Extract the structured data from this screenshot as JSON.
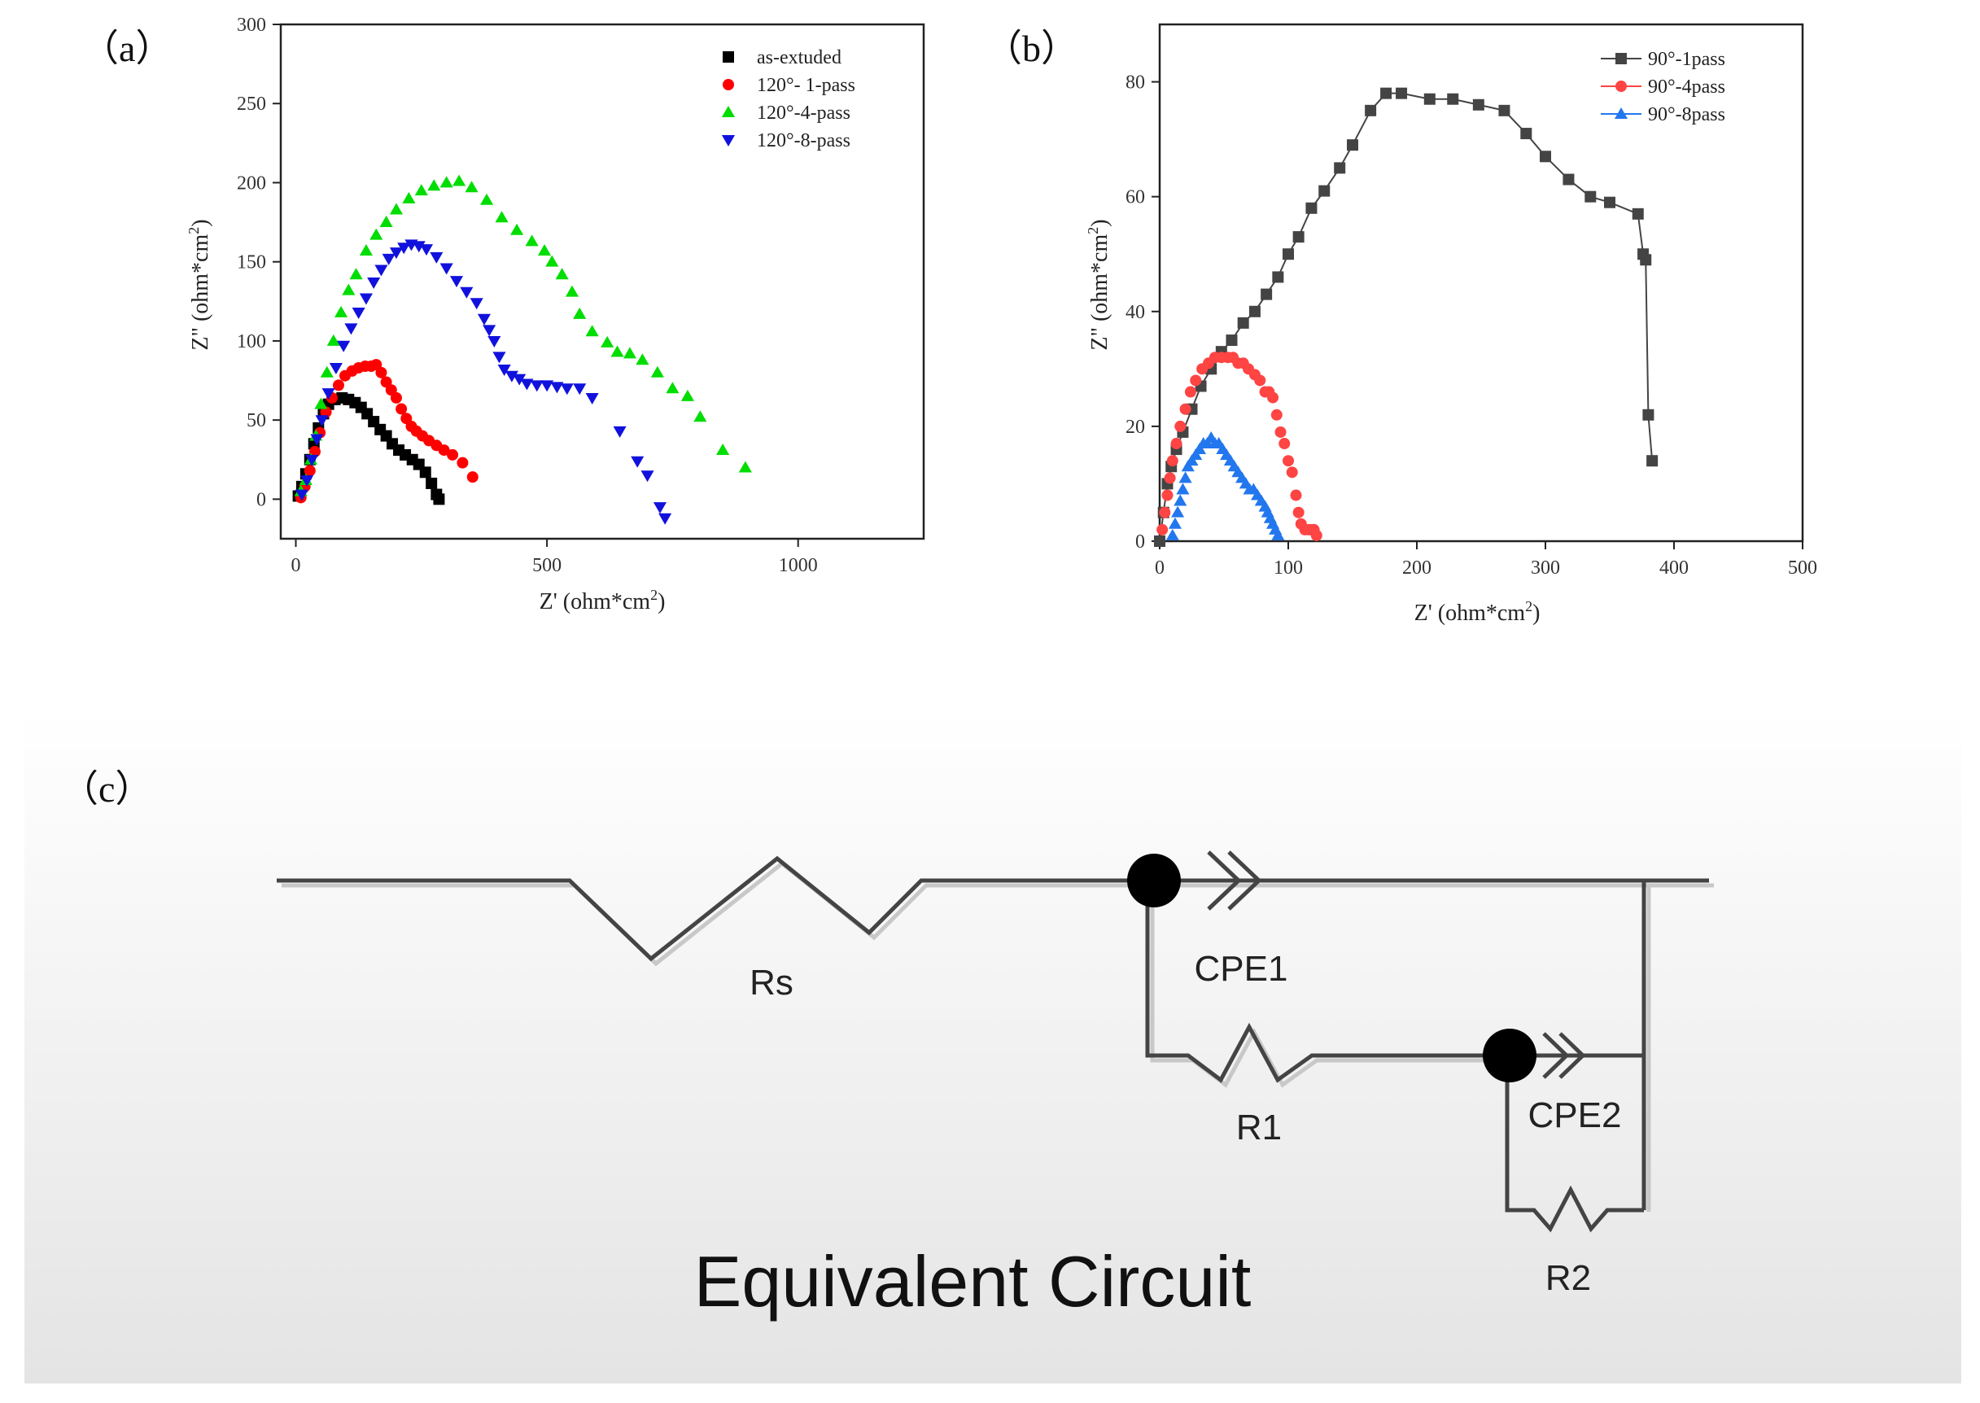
{
  "panel_labels": {
    "a": "（a）",
    "b": "（b）",
    "c": "（c）"
  },
  "chart_data": [
    {
      "type": "scatter",
      "id": "a",
      "xlabel": "Z' (ohm*cm",
      "ylabel": "Z\" (ohm*cm",
      "units_superscript": "2",
      "units_close": ")",
      "xlim": [
        -30,
        1250
      ],
      "ylim": [
        -25,
        300
      ],
      "xticks": [
        0,
        500,
        1000
      ],
      "yticks": [
        0,
        50,
        100,
        150,
        200,
        250,
        300
      ],
      "series": [
        {
          "name": "as-extuded",
          "color": "#000000",
          "marker": "square",
          "points": [
            [
              5,
              2
            ],
            [
              12,
              8
            ],
            [
              20,
              16
            ],
            [
              28,
              25
            ],
            [
              36,
              35
            ],
            [
              45,
              45
            ],
            [
              55,
              54
            ],
            [
              65,
              60
            ],
            [
              78,
              63
            ],
            [
              92,
              64
            ],
            [
              105,
              63
            ],
            [
              118,
              61
            ],
            [
              130,
              58
            ],
            [
              142,
              54
            ],
            [
              155,
              49
            ],
            [
              168,
              44
            ],
            [
              180,
              40
            ],
            [
              192,
              35
            ],
            [
              205,
              31
            ],
            [
              218,
              28
            ],
            [
              232,
              25
            ],
            [
              245,
              22
            ],
            [
              258,
              17
            ],
            [
              270,
              10
            ],
            [
              280,
              3
            ],
            [
              285,
              0
            ]
          ]
        },
        {
          "name": "120°- 1-pass",
          "color": "#ff0000",
          "marker": "circle",
          "points": [
            [
              10,
              1
            ],
            [
              18,
              8
            ],
            [
              28,
              18
            ],
            [
              38,
              30
            ],
            [
              48,
              42
            ],
            [
              60,
              55
            ],
            [
              72,
              64
            ],
            [
              85,
              72
            ],
            [
              98,
              78
            ],
            [
              112,
              81
            ],
            [
              125,
              83
            ],
            [
              138,
              84
            ],
            [
              150,
              84
            ],
            [
              160,
              85
            ],
            [
              170,
              80
            ],
            [
              180,
              74
            ],
            [
              190,
              69
            ],
            [
              200,
              64
            ],
            [
              210,
              57
            ],
            [
              220,
              51
            ],
            [
              230,
              46
            ],
            [
              240,
              43
            ],
            [
              252,
              40
            ],
            [
              265,
              37
            ],
            [
              280,
              34
            ],
            [
              295,
              31
            ],
            [
              312,
              28
            ],
            [
              332,
              23
            ],
            [
              352,
              14
            ]
          ]
        },
        {
          "name": "120°-4-pass",
          "color": "#00dd00",
          "marker": "triangle-up",
          "points": [
            [
              10,
              5
            ],
            [
              20,
              12
            ],
            [
              30,
              25
            ],
            [
              40,
              40
            ],
            [
              50,
              60
            ],
            [
              62,
              80
            ],
            [
              75,
              100
            ],
            [
              90,
              118
            ],
            [
              105,
              132
            ],
            [
              120,
              142
            ],
            [
              140,
              157
            ],
            [
              160,
              167
            ],
            [
              180,
              175
            ],
            [
              200,
              183
            ],
            [
              225,
              190
            ],
            [
              250,
              195
            ],
            [
              275,
              198
            ],
            [
              300,
              200
            ],
            [
              325,
              201
            ],
            [
              350,
              197
            ],
            [
              380,
              189
            ],
            [
              410,
              178
            ],
            [
              440,
              170
            ],
            [
              470,
              163
            ],
            [
              495,
              157
            ],
            [
              510,
              150
            ],
            [
              530,
              142
            ],
            [
              550,
              131
            ],
            [
              565,
              117
            ],
            [
              590,
              106
            ],
            [
              620,
              99
            ],
            [
              640,
              93
            ],
            [
              665,
              92
            ],
            [
              690,
              88
            ],
            [
              720,
              80
            ],
            [
              750,
              70
            ],
            [
              780,
              65
            ],
            [
              805,
              52
            ],
            [
              850,
              31
            ],
            [
              895,
              20
            ]
          ]
        },
        {
          "name": "120°-8-pass",
          "color": "#1111dd",
          "marker": "triangle-down",
          "points": [
            [
              12,
              3
            ],
            [
              22,
              12
            ],
            [
              32,
              25
            ],
            [
              42,
              38
            ],
            [
              52,
              50
            ],
            [
              65,
              67
            ],
            [
              80,
              83
            ],
            [
              95,
              97
            ],
            [
              110,
              108
            ],
            [
              125,
              118
            ],
            [
              140,
              127
            ],
            [
              155,
              137
            ],
            [
              170,
              145
            ],
            [
              185,
              152
            ],
            [
              200,
              156
            ],
            [
              215,
              159
            ],
            [
              230,
              161
            ],
            [
              245,
              160
            ],
            [
              260,
              158
            ],
            [
              280,
              153
            ],
            [
              300,
              146
            ],
            [
              320,
              138
            ],
            [
              340,
              131
            ],
            [
              360,
              124
            ],
            [
              375,
              114
            ],
            [
              385,
              107
            ],
            [
              395,
              100
            ],
            [
              405,
              90
            ],
            [
              415,
              82
            ],
            [
              430,
              78
            ],
            [
              445,
              76
            ],
            [
              460,
              73
            ],
            [
              480,
              72
            ],
            [
              500,
              72
            ],
            [
              520,
              71
            ],
            [
              540,
              70
            ],
            [
              565,
              70
            ],
            [
              590,
              64
            ],
            [
              645,
              43
            ],
            [
              680,
              24
            ],
            [
              700,
              15
            ],
            [
              725,
              -5
            ],
            [
              735,
              -12
            ]
          ]
        }
      ],
      "legend_position": "top-right"
    },
    {
      "type": "line",
      "id": "b",
      "xlabel": "Z' (ohm*cm",
      "ylabel": "Z\" (ohm*cm",
      "units_superscript": "2",
      "units_close": ")",
      "xlim": [
        0,
        500
      ],
      "ylim": [
        0,
        90
      ],
      "xticks": [
        0,
        100,
        200,
        300,
        400,
        500
      ],
      "yticks": [
        0,
        20,
        40,
        60,
        80
      ],
      "series": [
        {
          "name": "90°-1pass",
          "color": "#444444",
          "marker": "square",
          "connected": true,
          "points": [
            [
              0,
              0
            ],
            [
              3,
              5
            ],
            [
              6,
              10
            ],
            [
              9,
              13
            ],
            [
              13,
              16
            ],
            [
              18,
              19
            ],
            [
              25,
              23
            ],
            [
              32,
              27
            ],
            [
              40,
              30
            ],
            [
              48,
              33
            ],
            [
              56,
              35
            ],
            [
              65,
              38
            ],
            [
              74,
              40
            ],
            [
              83,
              43
            ],
            [
              92,
              46
            ],
            [
              100,
              50
            ],
            [
              108,
              53
            ],
            [
              118,
              58
            ],
            [
              128,
              61
            ],
            [
              140,
              65
            ],
            [
              150,
              69
            ],
            [
              164,
              75
            ],
            [
              176,
              78
            ],
            [
              188,
              78
            ],
            [
              210,
              77
            ],
            [
              228,
              77
            ],
            [
              248,
              76
            ],
            [
              268,
              75
            ],
            [
              285,
              71
            ],
            [
              300,
              67
            ],
            [
              318,
              63
            ],
            [
              335,
              60
            ],
            [
              350,
              59
            ],
            [
              372,
              57
            ],
            [
              376,
              50
            ],
            [
              378,
              49
            ],
            [
              380,
              22
            ],
            [
              383,
              14
            ]
          ]
        },
        {
          "name": "90°-4pass",
          "color": "#ff4444",
          "marker": "circle",
          "connected": false,
          "points": [
            [
              2,
              2
            ],
            [
              4,
              5
            ],
            [
              6,
              8
            ],
            [
              8,
              11
            ],
            [
              10,
              14
            ],
            [
              13,
              17
            ],
            [
              16,
              20
            ],
            [
              20,
              23
            ],
            [
              24,
              26
            ],
            [
              28,
              28
            ],
            [
              33,
              30
            ],
            [
              38,
              31
            ],
            [
              43,
              32
            ],
            [
              48,
              32
            ],
            [
              53,
              32
            ],
            [
              57,
              32
            ],
            [
              61,
              31
            ],
            [
              65,
              31
            ],
            [
              69,
              30
            ],
            [
              74,
              29
            ],
            [
              78,
              28
            ],
            [
              82,
              26
            ],
            [
              85,
              26
            ],
            [
              88,
              25
            ],
            [
              91,
              22
            ],
            [
              94,
              19
            ],
            [
              97,
              17
            ],
            [
              100,
              14
            ],
            [
              103,
              12
            ],
            [
              106,
              8
            ],
            [
              108,
              5
            ],
            [
              110,
              3
            ],
            [
              113,
              2
            ],
            [
              116,
              2
            ],
            [
              118,
              2
            ],
            [
              120,
              2
            ],
            [
              122,
              1
            ]
          ]
        },
        {
          "name": "90°-8pass",
          "color": "#2277ee",
          "marker": "triangle-up",
          "connected": false,
          "points": [
            [
              10,
              1
            ],
            [
              12,
              3
            ],
            [
              14,
              5
            ],
            [
              16,
              7
            ],
            [
              18,
              9
            ],
            [
              20,
              11
            ],
            [
              22,
              13
            ],
            [
              25,
              14
            ],
            [
              28,
              15
            ],
            [
              31,
              16
            ],
            [
              34,
              17
            ],
            [
              37,
              17
            ],
            [
              40,
              18
            ],
            [
              43,
              17
            ],
            [
              46,
              17
            ],
            [
              49,
              16
            ],
            [
              52,
              15
            ],
            [
              55,
              14
            ],
            [
              58,
              13
            ],
            [
              61,
              12
            ],
            [
              64,
              11
            ],
            [
              67,
              10
            ],
            [
              70,
              9
            ],
            [
              73,
              9
            ],
            [
              76,
              8
            ],
            [
              79,
              7
            ],
            [
              82,
              6
            ],
            [
              84,
              5
            ],
            [
              86,
              4
            ],
            [
              88,
              3
            ],
            [
              90,
              2
            ],
            [
              92,
              1
            ]
          ]
        }
      ],
      "legend_position": "top-right"
    }
  ],
  "circuit": {
    "title": "Equivalent Circuit",
    "labels": {
      "rs": "Rs",
      "cpe1": "CPE1",
      "r1": "R1",
      "cpe2": "CPE2",
      "r2": "R2"
    }
  }
}
